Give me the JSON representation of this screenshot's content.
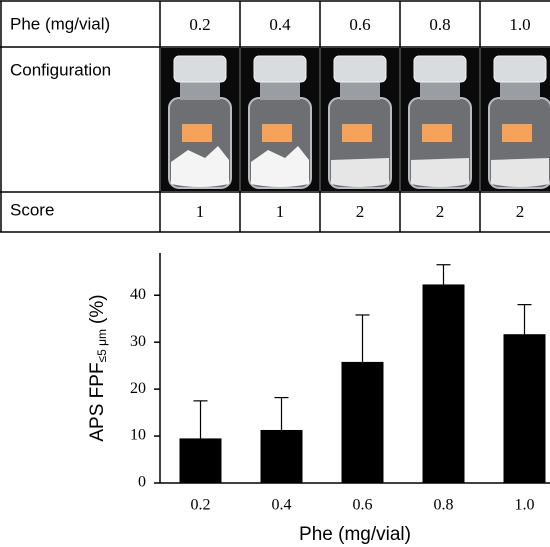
{
  "table": {
    "header": [
      "Phe (mg/vial)",
      "0.2",
      "0.4",
      "0.6",
      "0.8",
      "1.0"
    ],
    "rows": [
      [
        "Configuration"
      ],
      [
        "Score",
        "1",
        "1",
        "2",
        "2",
        "2"
      ]
    ]
  },
  "chart_data": {
    "type": "bar",
    "xlabel": "Phe (mg/vial)",
    "ylabel": {
      "main": "APS FPF",
      "sub": "≤5 μm",
      "unit": "(%)"
    },
    "categories": [
      "0.2",
      "0.4",
      "0.6",
      "0.8",
      "1.0"
    ],
    "values": [
      9.5,
      11.3,
      25.8,
      42.3,
      31.7
    ],
    "errors": [
      8.0,
      6.9,
      10.0,
      4.2,
      6.3
    ],
    "color": "#000000",
    "ylim": [
      0,
      49
    ],
    "yticks": [
      0,
      10,
      20,
      30,
      40
    ],
    "grid": false
  }
}
